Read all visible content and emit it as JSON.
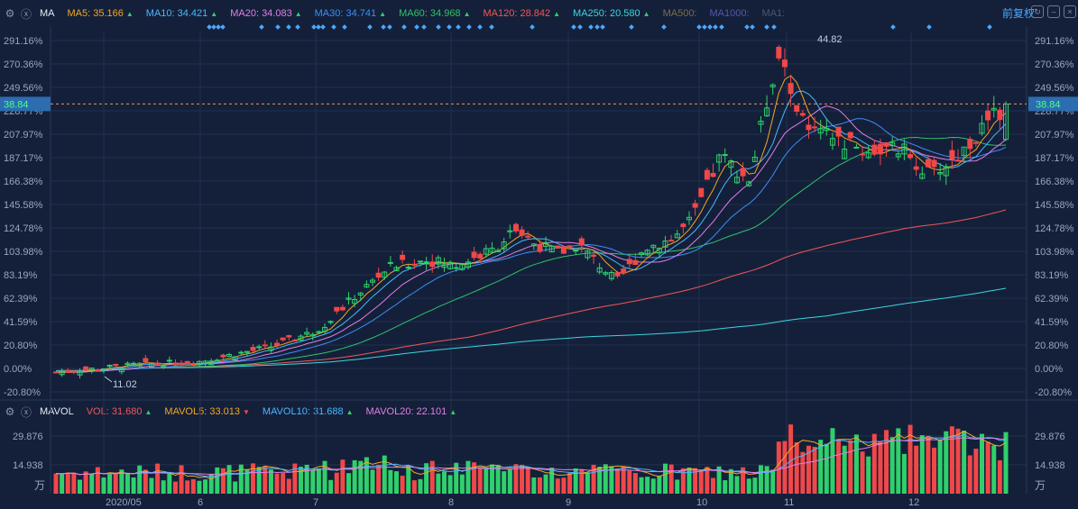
{
  "ma_bar": {
    "label": "MA",
    "items": [
      {
        "label": "MA5: 35.166",
        "color": "#f5a623",
        "trend": "up"
      },
      {
        "label": "MA10: 34.421",
        "color": "#4ab8ff",
        "trend": "up"
      },
      {
        "label": "MA20: 34.083",
        "color": "#e27ee6",
        "trend": "up"
      },
      {
        "label": "MA30: 34.741",
        "color": "#3d8ef5",
        "trend": "up"
      },
      {
        "label": "MA60: 34.968",
        "color": "#2fc46a",
        "trend": "up"
      },
      {
        "label": "MA120: 28.842",
        "color": "#f25757",
        "trend": "up"
      },
      {
        "label": "MA250: 20.580",
        "color": "#3ad6e0",
        "trend": "up"
      },
      {
        "label": "MA500:",
        "color": "#7a6e4e",
        "trend": ""
      },
      {
        "label": "MA1000:",
        "color": "#5a56a8",
        "trend": ""
      },
      {
        "label": "MA1:",
        "color": "#4a5870",
        "trend": ""
      }
    ],
    "adjust_label": "前复权"
  },
  "vol_bar": {
    "label": "MAVOL",
    "items": [
      {
        "label": "VOL: 31.680",
        "color": "#f25757",
        "trend": "up"
      },
      {
        "label": "MAVOL5: 33.013",
        "color": "#f5a623",
        "trend": "down"
      },
      {
        "label": "MAVOL10: 31.688",
        "color": "#4ab8ff",
        "trend": "up"
      },
      {
        "label": "MAVOL20: 22.101",
        "color": "#e27ee6",
        "trend": "up"
      }
    ]
  },
  "chart_data": {
    "type": "candlestick",
    "price_axis_ticks": [
      "291.16%",
      "270.36%",
      "249.56%",
      "228.77%",
      "207.97%",
      "187.17%",
      "166.38%",
      "145.58%",
      "124.78%",
      "103.98%",
      "83.19%",
      "62.39%",
      "41.59%",
      "20.80%",
      "0.00%",
      "-20.80%"
    ],
    "volume_axis_ticks": [
      "29.876",
      "14.938"
    ],
    "volume_unit": "万",
    "x_labels": [
      "2020/05",
      "6",
      "7",
      "8",
      "9",
      "10",
      "11",
      "12"
    ],
    "current_price": "38.84",
    "annotation_high": "44.82",
    "annotation_low": "11.02",
    "moving_averages": {
      "MA5": {
        "value": 35.166,
        "color": "#f5a623"
      },
      "MA10": {
        "value": 34.421,
        "color": "#4ab8ff"
      },
      "MA20": {
        "value": 34.083,
        "color": "#e27ee6"
      },
      "MA30": {
        "value": 34.741,
        "color": "#3d8ef5"
      },
      "MA60": {
        "value": 34.968,
        "color": "#2fc46a"
      },
      "MA120": {
        "value": 28.842,
        "color": "#f25757"
      },
      "MA250": {
        "value": 20.58,
        "color": "#3ad6e0"
      }
    },
    "volume": {
      "VOL": 31.68,
      "MAVOL5": 33.013,
      "MAVOL10": 31.688,
      "MAVOL20": 22.101
    },
    "up_color": "#2fd06b",
    "down_color": "#f04848"
  }
}
